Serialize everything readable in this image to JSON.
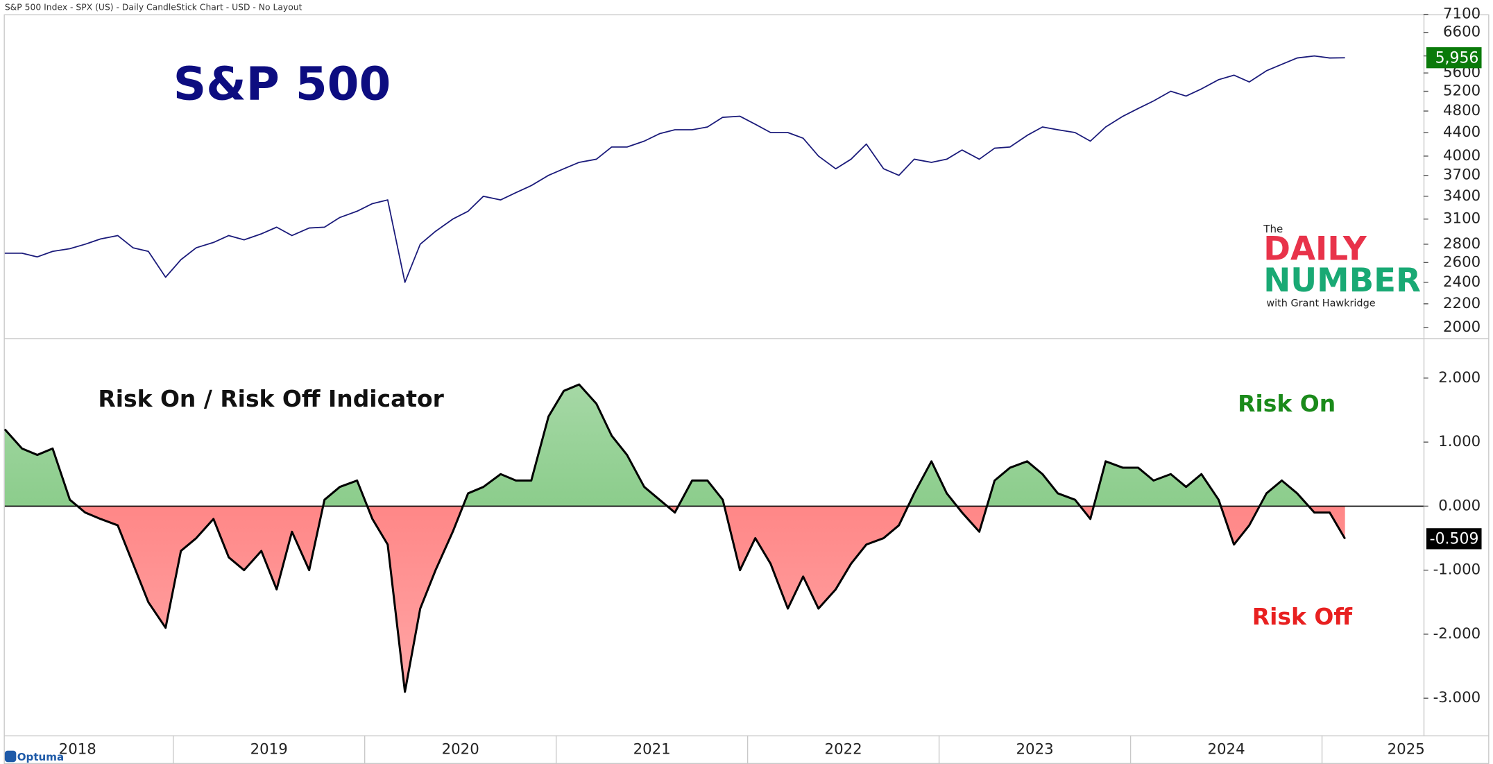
{
  "header": "S&P 500 Index - SPX (US) - Daily CandleStick Chart - USD - No Layout",
  "footer": "Optuma",
  "logo": {
    "small": "The",
    "line1": "DAILY",
    "line2": "NUMBER",
    "byline": "with Grant Hawkridge"
  },
  "chart_data": [
    {
      "type": "line",
      "title": "S&P 500",
      "log": true,
      "x": [
        2018.12,
        2018.21,
        2018.29,
        2018.37,
        2018.46,
        2018.54,
        2018.62,
        2018.71,
        2018.79,
        2018.87,
        2018.96,
        2019.04,
        2019.12,
        2019.21,
        2019.29,
        2019.37,
        2019.46,
        2019.54,
        2019.62,
        2019.71,
        2019.79,
        2019.87,
        2019.96,
        2020.04,
        2020.12,
        2020.21,
        2020.29,
        2020.37,
        2020.46,
        2020.54,
        2020.62,
        2020.71,
        2020.79,
        2020.87,
        2020.96,
        2021.04,
        2021.12,
        2021.21,
        2021.29,
        2021.37,
        2021.46,
        2021.54,
        2021.62,
        2021.71,
        2021.79,
        2021.87,
        2021.96,
        2022.04,
        2022.12,
        2022.21,
        2022.29,
        2022.37,
        2022.46,
        2022.54,
        2022.62,
        2022.71,
        2022.79,
        2022.87,
        2022.96,
        2023.04,
        2023.12,
        2023.21,
        2023.29,
        2023.37,
        2023.46,
        2023.54,
        2023.62,
        2023.71,
        2023.79,
        2023.87,
        2023.96,
        2024.04,
        2024.12,
        2024.21,
        2024.29,
        2024.37,
        2024.46,
        2024.54,
        2024.62,
        2024.71,
        2024.79,
        2024.87,
        2024.96,
        2025.04,
        2025.12
      ],
      "series": [
        {
          "name": "SPX",
          "color": "#1a1a7a",
          "values": [
            2700,
            2700,
            2660,
            2720,
            2750,
            2800,
            2860,
            2900,
            2760,
            2720,
            2450,
            2630,
            2760,
            2820,
            2900,
            2850,
            2920,
            3000,
            2900,
            2990,
            3000,
            3120,
            3200,
            3300,
            3350,
            2400,
            2800,
            2950,
            3100,
            3200,
            3400,
            3350,
            3450,
            3550,
            3700,
            3800,
            3900,
            3950,
            4150,
            4150,
            4250,
            4380,
            4450,
            4450,
            4500,
            4680,
            4700,
            4550,
            4400,
            4400,
            4300,
            4000,
            3800,
            3950,
            4200,
            3800,
            3700,
            3950,
            3900,
            3950,
            4100,
            3950,
            4130,
            4150,
            4350,
            4500,
            4450,
            4400,
            4250,
            4500,
            4700,
            4850,
            5000,
            5200,
            5100,
            5250,
            5450,
            5550,
            5400,
            5650,
            5800,
            5950,
            6000,
            5950,
            5956
          ],
          "last_label_color": "#0a7a0a",
          "last_label": "5,956"
        }
      ],
      "xlim": [
        2018.12,
        2025.53
      ],
      "ylim": [
        1930,
        7100
      ],
      "yticks": [
        2000,
        2200,
        2400,
        2600,
        2800,
        3100,
        3400,
        3700,
        4000,
        4400,
        4800,
        5200,
        5600,
        6000,
        6600,
        7100
      ]
    },
    {
      "type": "area",
      "title": "Risk On / Risk Off Indicator",
      "annotations": [
        "Risk On",
        "Risk Off"
      ],
      "x": [
        2018.12,
        2018.21,
        2018.29,
        2018.37,
        2018.46,
        2018.54,
        2018.62,
        2018.71,
        2018.79,
        2018.87,
        2018.96,
        2019.04,
        2019.12,
        2019.21,
        2019.29,
        2019.37,
        2019.46,
        2019.54,
        2019.62,
        2019.71,
        2019.79,
        2019.87,
        2019.96,
        2020.04,
        2020.12,
        2020.21,
        2020.29,
        2020.37,
        2020.46,
        2020.54,
        2020.62,
        2020.71,
        2020.79,
        2020.87,
        2020.96,
        2021.04,
        2021.12,
        2021.21,
        2021.29,
        2021.37,
        2021.46,
        2021.54,
        2021.62,
        2021.71,
        2021.79,
        2021.87,
        2021.96,
        2022.04,
        2022.12,
        2022.21,
        2022.29,
        2022.37,
        2022.46,
        2022.54,
        2022.62,
        2022.71,
        2022.79,
        2022.87,
        2022.96,
        2023.04,
        2023.12,
        2023.21,
        2023.29,
        2023.37,
        2023.46,
        2023.54,
        2023.62,
        2023.71,
        2023.79,
        2023.87,
        2023.96,
        2024.04,
        2024.12,
        2024.21,
        2024.29,
        2024.37,
        2024.46,
        2024.54,
        2024.62,
        2024.71,
        2024.79,
        2024.87,
        2024.96,
        2025.04,
        2025.12
      ],
      "series": [
        {
          "name": "Risk On / Risk Off",
          "color": "#000000",
          "positive_color": "#5cb85c",
          "negative_color": "#ff6b6b",
          "values": [
            1.2,
            0.9,
            0.8,
            0.9,
            0.1,
            -0.1,
            -0.2,
            -0.3,
            -0.9,
            -1.5,
            -1.9,
            -0.7,
            -0.5,
            -0.2,
            -0.8,
            -1.0,
            -0.7,
            -1.3,
            -0.4,
            -1.0,
            0.1,
            0.3,
            0.4,
            -0.2,
            -0.6,
            -2.9,
            -1.6,
            -1.0,
            -0.4,
            0.2,
            0.3,
            0.5,
            0.4,
            0.4,
            1.4,
            1.8,
            1.9,
            1.6,
            1.1,
            0.8,
            0.3,
            0.1,
            -0.1,
            0.4,
            0.4,
            0.1,
            -1.0,
            -0.5,
            -0.9,
            -1.6,
            -1.1,
            -1.6,
            -1.3,
            -0.9,
            -0.6,
            -0.5,
            -0.3,
            0.2,
            0.7,
            0.2,
            -0.1,
            -0.4,
            0.4,
            0.6,
            0.7,
            0.5,
            0.2,
            0.1,
            -0.2,
            0.7,
            0.6,
            0.6,
            0.4,
            0.5,
            0.3,
            0.5,
            0.1,
            -0.6,
            -0.3,
            0.2,
            0.4,
            0.2,
            -0.1,
            -0.1,
            -0.509
          ],
          "last_label_color": "#000000",
          "last_label": "-0.509"
        }
      ],
      "xlim": [
        2018.12,
        2025.53
      ],
      "xticks": [
        2018,
        2019,
        2020,
        2021,
        2022,
        2023,
        2024,
        2025
      ],
      "ylim": [
        -3.58,
        2.61
      ],
      "yticks": [
        {
          "value": -3,
          "label": "-3.000"
        },
        {
          "value": -2,
          "label": "-2.000"
        },
        {
          "value": -1,
          "label": "-1.000"
        },
        {
          "value": 0,
          "label": "0.000"
        },
        {
          "value": 1,
          "label": "1.000"
        },
        {
          "value": 2,
          "label": "2.000"
        }
      ]
    }
  ]
}
